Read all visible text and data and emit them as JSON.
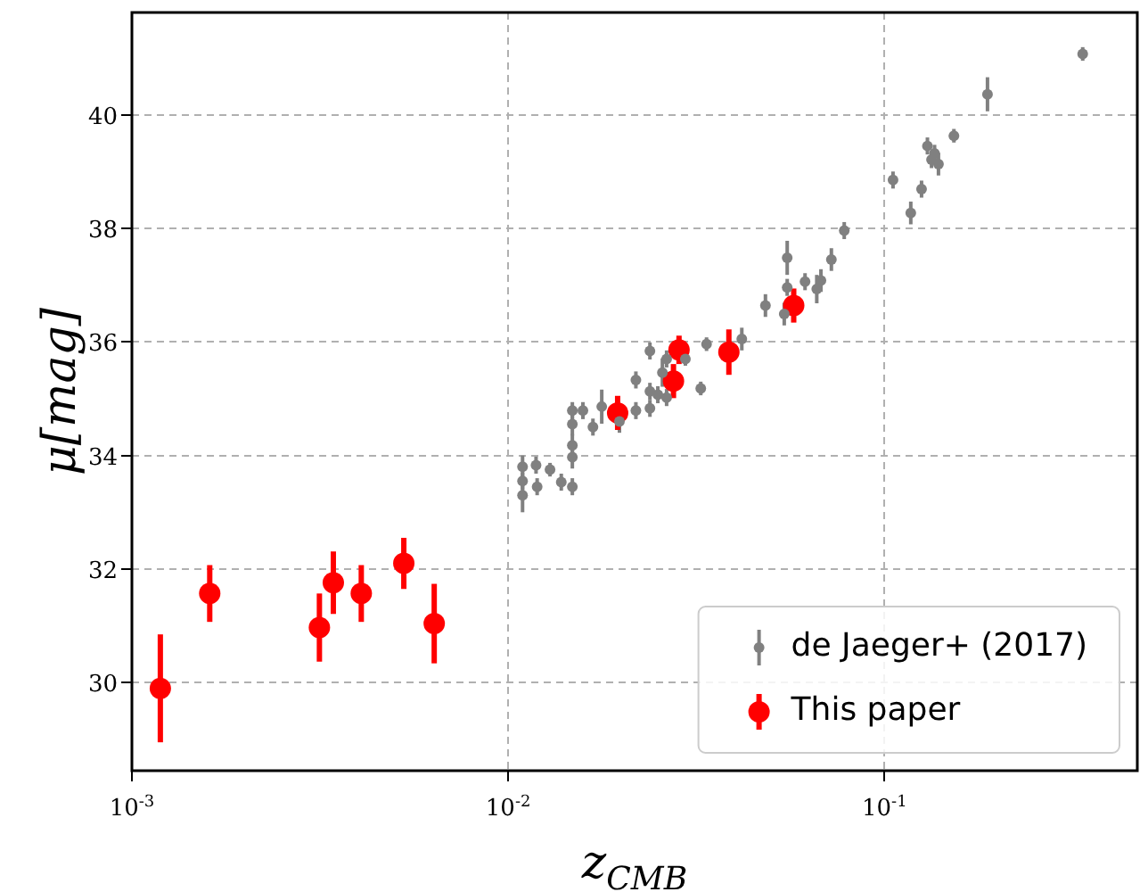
{
  "chart_data": {
    "type": "scatter",
    "xlabel": "z$_{CMB}$",
    "ylabel": "μ[mag]",
    "log": "x",
    "xlim": [
      0.001,
      0.47
    ],
    "xticks": [
      {
        "value": 0.001,
        "label": "10$^{-3}$"
      },
      {
        "value": 0.01,
        "label": "10$^{-2}$"
      },
      {
        "value": 0.1,
        "label": "10$^{-1}$"
      }
    ],
    "ylim": [
      28.45,
      41.8
    ],
    "yticks": [
      30,
      32,
      34,
      36,
      38,
      40
    ],
    "grid": true,
    "legend": "bottom right",
    "marker": "circle",
    "series": [
      {
        "name": "de Jaeger+ (2017)",
        "color": "#808080",
        "x": [
          0.01092,
          0.01092,
          0.01092,
          0.01186,
          0.01292,
          0.01194,
          0.01384,
          0.01481,
          0.01481,
          0.01481,
          0.01481,
          0.01481,
          0.0158,
          0.0168,
          0.01773,
          0.01976,
          0.02185,
          0.02185,
          0.02381,
          0.02381,
          0.02381,
          0.02499,
          0.0257,
          0.02637,
          0.02637,
          0.02958,
          0.0325,
          0.03367,
          0.04178,
          0.04828,
          0.05516,
          0.05417,
          0.05516,
          0.06152,
          0.0678,
          0.0661,
          0.07228,
          0.0782,
          0.1054,
          0.1175,
          0.1255,
          0.1301,
          0.1359,
          0.1334,
          0.1392,
          0.153,
          0.1879,
          0.3365
        ],
        "values": [
          33.8,
          33.55,
          33.3,
          33.83,
          33.75,
          33.45,
          33.53,
          33.45,
          33.97,
          34.18,
          34.55,
          34.79,
          34.79,
          34.5,
          34.86,
          34.6,
          34.79,
          35.33,
          34.83,
          35.13,
          35.84,
          35.07,
          35.46,
          35.02,
          35.7,
          35.7,
          35.18,
          35.96,
          36.05,
          36.64,
          36.96,
          36.49,
          37.48,
          37.06,
          37.08,
          36.93,
          37.45,
          37.96,
          38.85,
          38.27,
          38.69,
          39.45,
          39.32,
          39.21,
          39.13,
          39.63,
          40.36,
          41.07
        ],
        "errors": [
          0.2,
          0.15,
          0.3,
          0.15,
          0.12,
          0.15,
          0.15,
          0.15,
          0.2,
          0.2,
          0.2,
          0.15,
          0.15,
          0.15,
          0.3,
          0.2,
          0.15,
          0.15,
          0.15,
          0.15,
          0.15,
          0.15,
          0.25,
          0.15,
          0.15,
          0.12,
          0.12,
          0.12,
          0.2,
          0.2,
          0.15,
          0.2,
          0.3,
          0.15,
          0.2,
          0.25,
          0.2,
          0.15,
          0.15,
          0.2,
          0.15,
          0.15,
          0.15,
          0.15,
          0.2,
          0.12,
          0.3,
          0.12
        ]
      },
      {
        "name": "This paper",
        "color": "#ff0000",
        "x": [
          0.00119,
          0.00161,
          0.00315,
          0.00343,
          0.00407,
          0.00528,
          0.00636,
          0.01954,
          0.0275,
          0.02845,
          0.0386,
          0.0574
        ],
        "values": [
          29.9,
          31.57,
          30.97,
          31.76,
          31.57,
          32.1,
          31.04,
          34.75,
          35.31,
          35.86,
          35.82,
          36.64
        ],
        "errors": [
          0.95,
          0.5,
          0.6,
          0.55,
          0.5,
          0.45,
          0.7,
          0.3,
          0.3,
          0.25,
          0.4,
          0.3
        ]
      }
    ]
  }
}
